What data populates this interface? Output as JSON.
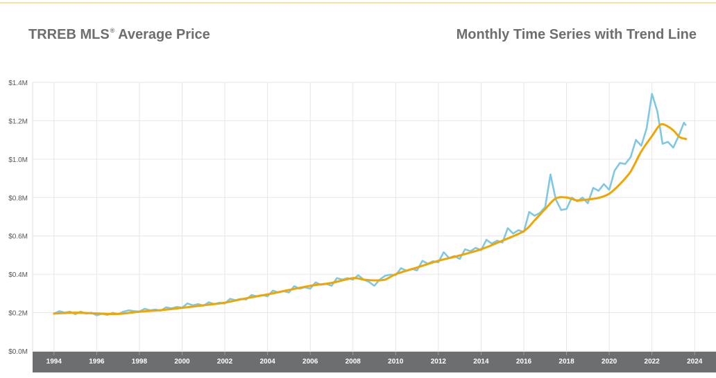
{
  "header": {
    "title_main": "TRREB MLS",
    "title_mark": "®",
    "title_rest": " Average Price",
    "subtitle": "Monthly Time Series with Trend Line"
  },
  "chart_data": {
    "type": "line",
    "title": "TRREB MLS® Average Price",
    "subtitle": "Monthly Time Series with Trend Line",
    "xlabel": "",
    "ylabel": "",
    "xlim": [
      1993.0,
      2025.0
    ],
    "ylim": [
      0,
      1400000
    ],
    "yticks": [
      0,
      200000,
      400000,
      600000,
      800000,
      1000000,
      1200000,
      1400000
    ],
    "ytick_labels": [
      "$0.0M",
      "$0.2M",
      "$0.4M",
      "$0.6M",
      "$0.8M",
      "$1.0M",
      "$1.2M",
      "$1.4M"
    ],
    "xticks": [
      1994,
      1996,
      1998,
      2000,
      2002,
      2004,
      2006,
      2008,
      2010,
      2012,
      2014,
      2016,
      2018,
      2020,
      2022,
      2024
    ],
    "grid": true,
    "legend": "none",
    "colors": {
      "monthly": "#7ec8e3",
      "trend": "#f0a500",
      "axis_band": "#6d6e70",
      "grid": "#e6e6e6"
    },
    "series": [
      {
        "key": "monthly",
        "points": [
          [
            1994.0,
            195000
          ],
          [
            1994.25,
            208000
          ],
          [
            1994.5,
            200000
          ],
          [
            1994.75,
            205000
          ],
          [
            1995.0,
            192000
          ],
          [
            1995.25,
            205000
          ],
          [
            1995.5,
            195000
          ],
          [
            1995.75,
            200000
          ],
          [
            1996.0,
            186000
          ],
          [
            1996.25,
            194000
          ],
          [
            1996.5,
            188000
          ],
          [
            1996.75,
            199000
          ],
          [
            1997.0,
            192000
          ],
          [
            1997.25,
            205000
          ],
          [
            1997.5,
            212000
          ],
          [
            1997.75,
            208000
          ],
          [
            1998.0,
            206000
          ],
          [
            1998.25,
            220000
          ],
          [
            1998.5,
            212000
          ],
          [
            1998.75,
            216000
          ],
          [
            1999.0,
            210000
          ],
          [
            1999.25,
            228000
          ],
          [
            1999.5,
            222000
          ],
          [
            1999.75,
            230000
          ],
          [
            2000.0,
            226000
          ],
          [
            2000.25,
            248000
          ],
          [
            2000.5,
            238000
          ],
          [
            2000.75,
            245000
          ],
          [
            2001.0,
            236000
          ],
          [
            2001.25,
            254000
          ],
          [
            2001.5,
            245000
          ],
          [
            2001.75,
            252000
          ],
          [
            2002.0,
            248000
          ],
          [
            2002.25,
            272000
          ],
          [
            2002.5,
            265000
          ],
          [
            2002.75,
            272000
          ],
          [
            2003.0,
            268000
          ],
          [
            2003.25,
            292000
          ],
          [
            2003.5,
            285000
          ],
          [
            2003.75,
            292000
          ],
          [
            2004.0,
            285000
          ],
          [
            2004.25,
            315000
          ],
          [
            2004.5,
            305000
          ],
          [
            2004.75,
            312000
          ],
          [
            2005.0,
            305000
          ],
          [
            2005.25,
            338000
          ],
          [
            2005.5,
            325000
          ],
          [
            2005.75,
            332000
          ],
          [
            2006.0,
            325000
          ],
          [
            2006.25,
            358000
          ],
          [
            2006.5,
            345000
          ],
          [
            2006.75,
            350000
          ],
          [
            2007.0,
            340000
          ],
          [
            2007.25,
            380000
          ],
          [
            2007.5,
            372000
          ],
          [
            2007.75,
            380000
          ],
          [
            2008.0,
            372000
          ],
          [
            2008.25,
            395000
          ],
          [
            2008.5,
            372000
          ],
          [
            2008.75,
            360000
          ],
          [
            2009.0,
            340000
          ],
          [
            2009.25,
            372000
          ],
          [
            2009.5,
            392000
          ],
          [
            2009.75,
            398000
          ],
          [
            2010.0,
            395000
          ],
          [
            2010.25,
            432000
          ],
          [
            2010.5,
            418000
          ],
          [
            2010.75,
            428000
          ],
          [
            2011.0,
            420000
          ],
          [
            2011.25,
            470000
          ],
          [
            2011.5,
            455000
          ],
          [
            2011.75,
            468000
          ],
          [
            2012.0,
            462000
          ],
          [
            2012.25,
            515000
          ],
          [
            2012.5,
            485000
          ],
          [
            2012.75,
            495000
          ],
          [
            2013.0,
            480000
          ],
          [
            2013.25,
            530000
          ],
          [
            2013.5,
            520000
          ],
          [
            2013.75,
            538000
          ],
          [
            2014.0,
            525000
          ],
          [
            2014.25,
            580000
          ],
          [
            2014.5,
            560000
          ],
          [
            2014.75,
            575000
          ],
          [
            2015.0,
            565000
          ],
          [
            2015.25,
            640000
          ],
          [
            2015.5,
            612000
          ],
          [
            2015.75,
            630000
          ],
          [
            2016.0,
            620000
          ],
          [
            2016.25,
            725000
          ],
          [
            2016.5,
            705000
          ],
          [
            2016.75,
            720000
          ],
          [
            2017.0,
            750000
          ],
          [
            2017.25,
            920000
          ],
          [
            2017.5,
            790000
          ],
          [
            2017.75,
            735000
          ],
          [
            2018.0,
            740000
          ],
          [
            2018.25,
            800000
          ],
          [
            2018.5,
            780000
          ],
          [
            2018.75,
            800000
          ],
          [
            2019.0,
            770000
          ],
          [
            2019.25,
            850000
          ],
          [
            2019.5,
            835000
          ],
          [
            2019.75,
            870000
          ],
          [
            2020.0,
            840000
          ],
          [
            2020.25,
            940000
          ],
          [
            2020.5,
            980000
          ],
          [
            2020.75,
            975000
          ],
          [
            2021.0,
            1010000
          ],
          [
            2021.25,
            1100000
          ],
          [
            2021.5,
            1070000
          ],
          [
            2021.75,
            1160000
          ],
          [
            2022.0,
            1340000
          ],
          [
            2022.25,
            1250000
          ],
          [
            2022.5,
            1080000
          ],
          [
            2022.75,
            1090000
          ],
          [
            2023.0,
            1060000
          ],
          [
            2023.25,
            1120000
          ],
          [
            2023.5,
            1190000
          ],
          [
            2023.6,
            1175000
          ]
        ]
      },
      {
        "key": "trend",
        "points": [
          [
            1994.0,
            195000
          ],
          [
            1995.0,
            200000
          ],
          [
            1996.0,
            196000
          ],
          [
            1997.0,
            193000
          ],
          [
            1998.0,
            205000
          ],
          [
            1999.0,
            213000
          ],
          [
            2000.0,
            225000
          ],
          [
            2001.0,
            238000
          ],
          [
            2002.0,
            252000
          ],
          [
            2003.0,
            275000
          ],
          [
            2004.0,
            295000
          ],
          [
            2005.0,
            318000
          ],
          [
            2006.0,
            340000
          ],
          [
            2007.0,
            355000
          ],
          [
            2008.0,
            380000
          ],
          [
            2008.5,
            372000
          ],
          [
            2009.0,
            368000
          ],
          [
            2009.5,
            372000
          ],
          [
            2010.0,
            400000
          ],
          [
            2011.0,
            435000
          ],
          [
            2012.0,
            470000
          ],
          [
            2013.0,
            498000
          ],
          [
            2014.0,
            530000
          ],
          [
            2015.0,
            575000
          ],
          [
            2016.0,
            625000
          ],
          [
            2016.5,
            680000
          ],
          [
            2017.0,
            740000
          ],
          [
            2017.5,
            795000
          ],
          [
            2018.0,
            800000
          ],
          [
            2018.5,
            785000
          ],
          [
            2019.0,
            790000
          ],
          [
            2019.5,
            798000
          ],
          [
            2020.0,
            820000
          ],
          [
            2020.5,
            870000
          ],
          [
            2021.0,
            935000
          ],
          [
            2021.5,
            1040000
          ],
          [
            2022.0,
            1120000
          ],
          [
            2022.4,
            1180000
          ],
          [
            2022.75,
            1170000
          ],
          [
            2023.0,
            1150000
          ],
          [
            2023.3,
            1115000
          ],
          [
            2023.6,
            1105000
          ]
        ]
      }
    ]
  }
}
